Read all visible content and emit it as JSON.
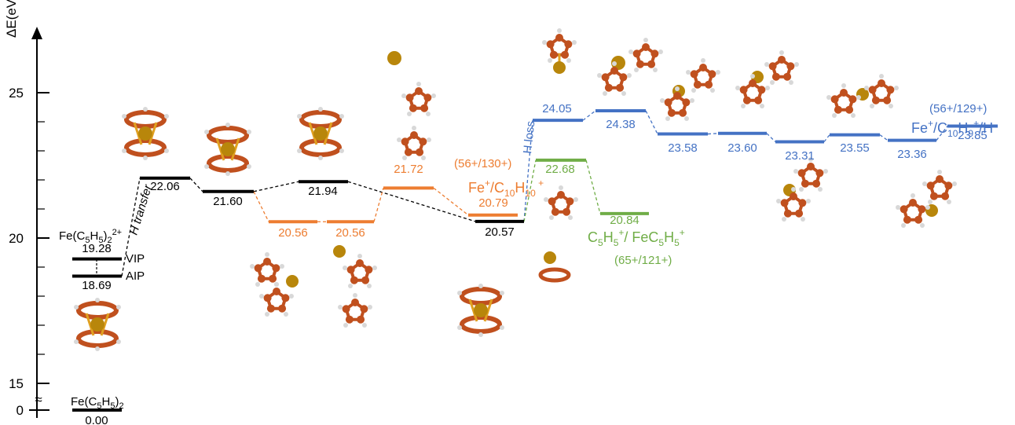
{
  "axis": {
    "label": "ΔE(eV)",
    "break_symbol": "≈",
    "ticks": [
      {
        "value": 0,
        "label": "0"
      },
      {
        "value": 15,
        "label": "15"
      },
      {
        "value": 20,
        "label": "20"
      },
      {
        "value": 25,
        "label": "25"
      }
    ]
  },
  "colors": {
    "main": "#000000",
    "orange": "#ed7d31",
    "blue": "#4472c4",
    "green": "#70ad47",
    "iron": "#b8860b",
    "carbon": "#c0501e"
  },
  "levels": [
    {
      "id": "ferrocene",
      "value": 0.0,
      "label": "0.00",
      "color": "main"
    },
    {
      "id": "aip",
      "value": 18.69,
      "label": "18.69",
      "color": "main"
    },
    {
      "id": "vip",
      "value": 19.28,
      "label": "19.28",
      "color": "main"
    },
    {
      "id": "ts1",
      "value": 22.06,
      "label": "22.06",
      "color": "main"
    },
    {
      "id": "int1",
      "value": 21.6,
      "label": "21.60",
      "color": "main"
    },
    {
      "id": "int2",
      "value": 21.94,
      "label": "21.94",
      "color": "main"
    },
    {
      "id": "int3",
      "value": 20.57,
      "label": "20.57",
      "color": "main"
    },
    {
      "id": "or1",
      "value": 20.56,
      "label": "20.56",
      "color": "orange"
    },
    {
      "id": "or2",
      "value": 20.56,
      "label": "20.56",
      "color": "orange"
    },
    {
      "id": "or3",
      "value": 21.72,
      "label": "21.72",
      "color": "orange"
    },
    {
      "id": "or4",
      "value": 20.79,
      "label": "20.79",
      "color": "orange"
    },
    {
      "id": "gr1",
      "value": 22.68,
      "label": "22.68",
      "color": "green"
    },
    {
      "id": "gr2",
      "value": 20.84,
      "label": "20.84",
      "color": "green"
    },
    {
      "id": "bl1",
      "value": 24.05,
      "label": "24.05",
      "color": "blue"
    },
    {
      "id": "bl2",
      "value": 24.38,
      "label": "24.38",
      "color": "blue"
    },
    {
      "id": "bl3",
      "value": 23.58,
      "label": "23.58",
      "color": "blue"
    },
    {
      "id": "bl4",
      "value": 23.6,
      "label": "23.60",
      "color": "blue"
    },
    {
      "id": "bl5",
      "value": 23.31,
      "label": "23.31",
      "color": "blue"
    },
    {
      "id": "bl6",
      "value": 23.55,
      "label": "23.55",
      "color": "blue"
    },
    {
      "id": "bl7",
      "value": 23.36,
      "label": "23.36",
      "color": "blue"
    },
    {
      "id": "bl8",
      "value": 23.85,
      "label": "23.85",
      "color": "blue"
    }
  ],
  "annotations": {
    "ferrocene_formula": "Fe(C5H5)2",
    "dication_formula": "Fe(C5H5)22+",
    "vip": "VIP",
    "aip": "AIP",
    "h_transfer": "H transfer",
    "h_loss": "H loss",
    "orange_mass": "(56+/130+)",
    "orange_products": "Fe+/C10H10+",
    "green_products": "C5H5+/ FeC5H5+",
    "green_mass": "(65+/121+)",
    "blue_mass": "(56+/129+)",
    "blue_products": "Fe+/C10H9+/H"
  }
}
